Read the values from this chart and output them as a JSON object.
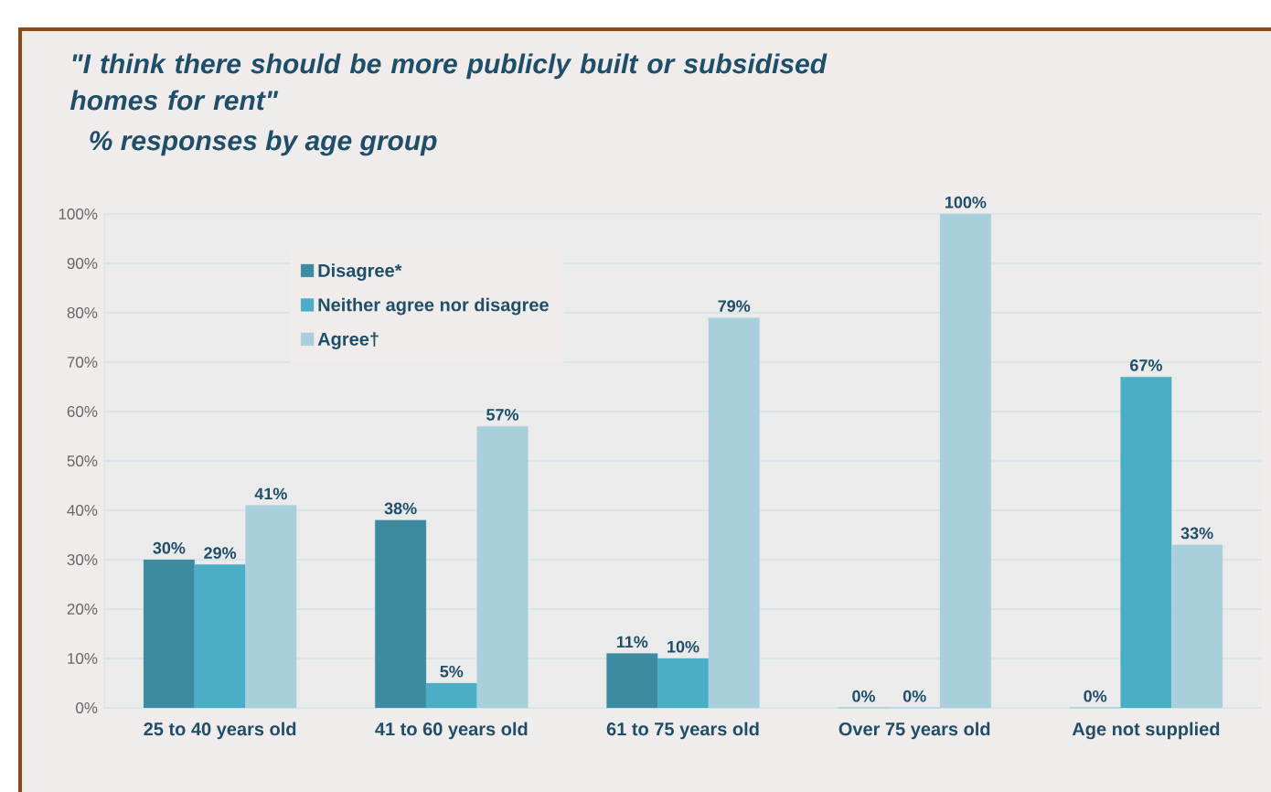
{
  "chart_data": {
    "type": "bar",
    "title": "\"I think there should be more publicly built or subsidised homes for rent\"",
    "subtitle": "% responses by age group",
    "categories": [
      "25 to 40 years old",
      "41 to 60 years old",
      "61 to 75 years old",
      "Over 75 years old",
      "Age not supplied"
    ],
    "series": [
      {
        "name": "Disagree*",
        "color": "#3d8ba0",
        "values": [
          30,
          38,
          11,
          0,
          0
        ],
        "value_labels": [
          "30%",
          "38%",
          "11%",
          "0%",
          "0%"
        ]
      },
      {
        "name": "Neither agree nor disagree",
        "color": "#4badc6",
        "values": [
          29,
          5,
          10,
          0,
          67
        ],
        "value_labels": [
          "29%",
          "5%",
          "10%",
          "0%",
          "67%"
        ]
      },
      {
        "name": "Agree†",
        "color": "#a9cfdc",
        "values": [
          41,
          57,
          79,
          100,
          33
        ],
        "value_labels": [
          "41%",
          "57%",
          "79%",
          "100%",
          "33%"
        ]
      }
    ],
    "ylim": [
      0,
      100
    ],
    "yticks": [
      {
        "value": 0,
        "label": "0%"
      },
      {
        "value": 10,
        "label": "10%"
      },
      {
        "value": 20,
        "label": "20%"
      },
      {
        "value": 30,
        "label": "30%"
      },
      {
        "value": 40,
        "label": "40%"
      },
      {
        "value": 50,
        "label": "50%"
      },
      {
        "value": 60,
        "label": "60%"
      },
      {
        "value": 70,
        "label": "70%"
      },
      {
        "value": 80,
        "label": "80%"
      },
      {
        "value": 90,
        "label": "90%"
      },
      {
        "value": 100,
        "label": "100%"
      }
    ],
    "grid": "y",
    "legend": "top left"
  }
}
